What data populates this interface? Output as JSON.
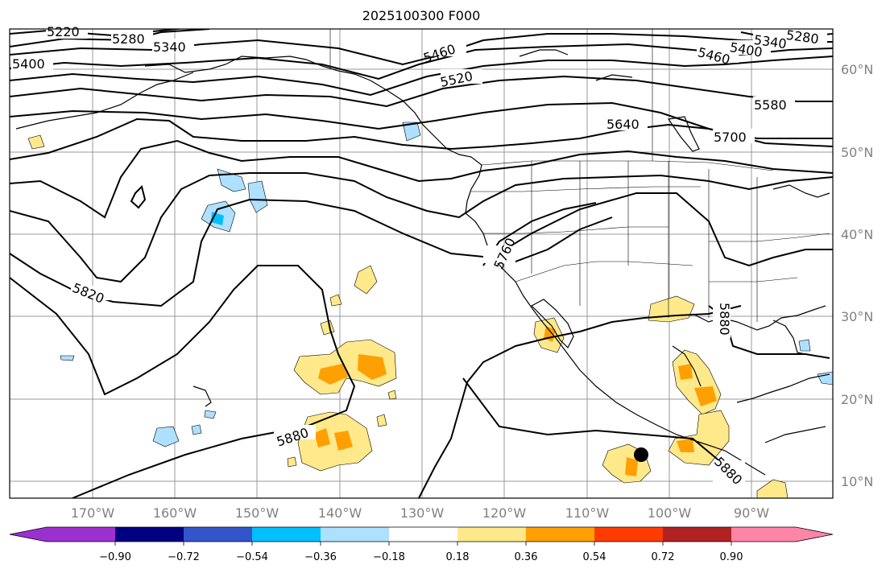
{
  "title": "2025100300 F000",
  "map": {
    "lat_ticks": [
      "60°N",
      "50°N",
      "40°N",
      "30°N",
      "20°N",
      "10°N"
    ],
    "lon_ticks": [
      "170°W",
      "160°W",
      "150°W",
      "140°W",
      "130°W",
      "120°W",
      "110°W",
      "100°W",
      "90°W"
    ],
    "contour_labels": [
      "5220",
      "5280",
      "5340",
      "5400",
      "5460",
      "5520",
      "5580",
      "5640",
      "5700",
      "5760",
      "5820",
      "5880",
      "5880",
      "5880",
      "5340",
      "5400",
      "5460",
      "5280"
    ],
    "marker": "black-dot"
  },
  "colorbar": {
    "ticks": [
      "−0.90",
      "−0.72",
      "−0.54",
      "−0.36",
      "−0.18",
      "0.18",
      "0.36",
      "0.54",
      "0.72",
      "0.90"
    ],
    "colors": [
      "#9b30d0",
      "#000080",
      "#3355cc",
      "#00bfff",
      "#aee0ff",
      "#ffffff",
      "#ffe98a",
      "#ffa000",
      "#ff3b00",
      "#b22222",
      "#ff85a8"
    ]
  }
}
